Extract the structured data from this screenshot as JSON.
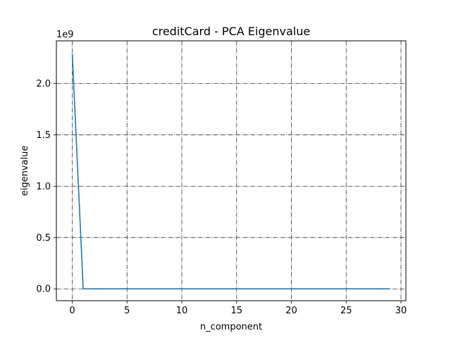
{
  "chart_data": {
    "type": "line",
    "title": "creditCard - PCA Eigenvalue",
    "xlabel": "n_component",
    "ylabel": "eigenvalue",
    "y_offset_label": "1e9",
    "xlim": [
      -1.45,
      30.45
    ],
    "ylim": [
      -0.115,
      2.415
    ],
    "xticks": [
      0,
      5,
      10,
      15,
      20,
      25,
      30
    ],
    "yticks": [
      0.0,
      0.5,
      1.0,
      1.5,
      2.0
    ],
    "ytick_labels": [
      "0.0",
      "0.5",
      "1.0",
      "1.5",
      "2.0"
    ],
    "grid": true,
    "grid_style": "dash-dot",
    "series": [
      {
        "color": "#1f77b4",
        "x": [
          0,
          1,
          2,
          3,
          4,
          5,
          6,
          7,
          8,
          9,
          10,
          11,
          12,
          13,
          14,
          15,
          16,
          17,
          18,
          19,
          20,
          21,
          22,
          23,
          24,
          25,
          26,
          27,
          28,
          29
        ],
        "y": [
          2.29,
          0.001,
          0.0005,
          0.0003,
          0.0002,
          0.0001,
          0.0001,
          0.0001,
          0.0001,
          0,
          0,
          0,
          0,
          0,
          0,
          0,
          0,
          0,
          0,
          0,
          0,
          0,
          0,
          0,
          0,
          0,
          0,
          0,
          0,
          0
        ]
      }
    ]
  }
}
